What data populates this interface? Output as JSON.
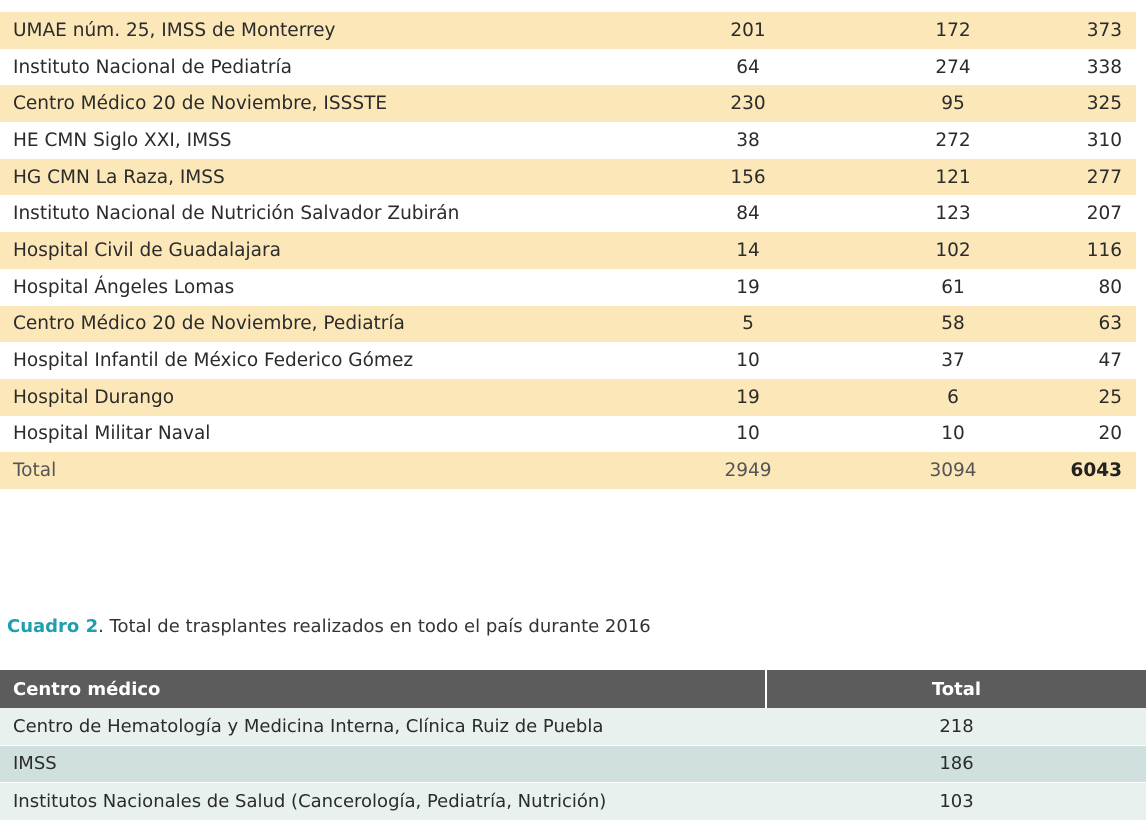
{
  "table1": {
    "rows": [
      {
        "name": "UMAE núm. 25, IMSS de Monterrey",
        "a": "201",
        "b": "172",
        "c": "373"
      },
      {
        "name": "Instituto Nacional de Pediatría",
        "a": "64",
        "b": "274",
        "c": "338"
      },
      {
        "name": "Centro Médico 20 de Noviembre, ISSSTE",
        "a": "230",
        "b": "95",
        "c": "325"
      },
      {
        "name": "HE CMN Siglo XXI, IMSS",
        "a": "38",
        "b": "272",
        "c": "310"
      },
      {
        "name": "HG CMN La Raza, IMSS",
        "a": "156",
        "b": "121",
        "c": "277"
      },
      {
        "name": "Instituto Nacional de Nutrición Salvador Zubirán",
        "a": "84",
        "b": "123",
        "c": "207"
      },
      {
        "name": "Hospital Civil de Guadalajara",
        "a": "14",
        "b": "102",
        "c": "116"
      },
      {
        "name": "Hospital Ángeles Lomas",
        "a": "19",
        "b": "61",
        "c": "80"
      },
      {
        "name": "Centro Médico 20 de Noviembre, Pediatría",
        "a": "5",
        "b": "58",
        "c": "63"
      },
      {
        "name": "Hospital Infantil de México Federico Gómez",
        "a": "10",
        "b": "37",
        "c": "47"
      },
      {
        "name": "Hospital Durango",
        "a": "19",
        "b": "6",
        "c": "25"
      },
      {
        "name": "Hospital Militar Naval",
        "a": "10",
        "b": "10",
        "c": "20"
      }
    ],
    "total": {
      "name": "Total",
      "a": "2949",
      "b": "3094",
      "c": "6043"
    }
  },
  "caption": {
    "label": "Cuadro 2",
    "text": ". Total de trasplantes realizados en todo el país durante 2016"
  },
  "table2": {
    "headers": {
      "name": "Centro médico",
      "total": "Total"
    },
    "rows": [
      {
        "name": "Centro de Hematología y Medicina Interna, Clínica Ruiz de Puebla",
        "total": "218"
      },
      {
        "name": "IMSS",
        "total": "186"
      },
      {
        "name": "Institutos Nacionales de Salud (Cancerología, Pediatría, Nutrición)",
        "total": "103"
      }
    ]
  },
  "colors": {
    "table1_band": "#fbe7b8",
    "caption_label": "#1f9db1",
    "table2_header": "#5c5c5c",
    "table2_row_light": "#e9f1ef",
    "table2_row_dark": "#cfe0df"
  }
}
